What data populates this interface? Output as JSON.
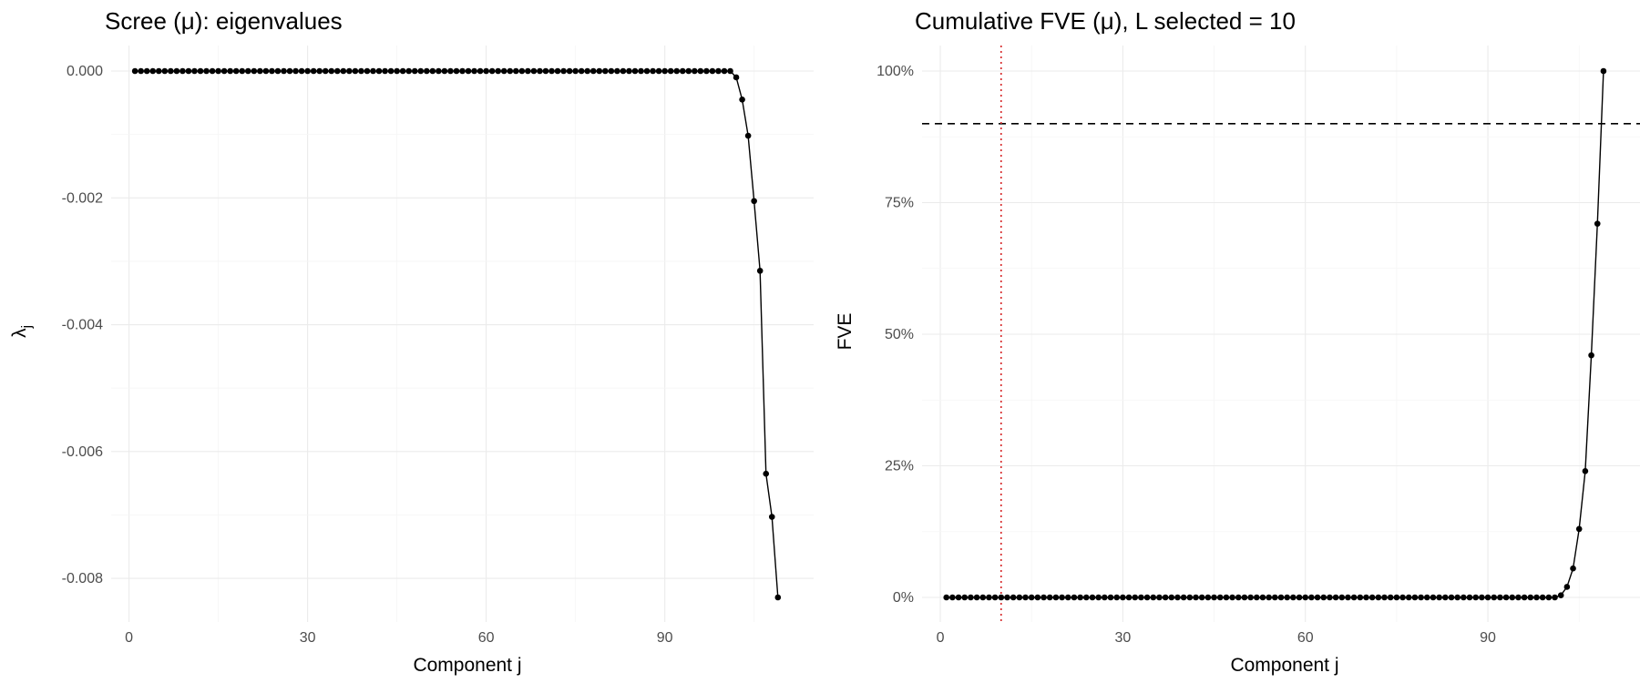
{
  "chart_data": [
    {
      "type": "line",
      "title": "Scree (μ): eigenvalues",
      "xlabel": "Component j",
      "ylabel": "λj",
      "ylabel_main": "λ",
      "ylabel_sub": "j",
      "xlim": [
        1,
        109
      ],
      "ylim": [
        -0.0083,
        0.0
      ],
      "xticks": [
        0,
        30,
        60,
        90
      ],
      "xtick_labels": [
        "0",
        "30",
        "60",
        "90"
      ],
      "yticks": [
        0.0,
        -0.002,
        -0.004,
        -0.006,
        -0.008
      ],
      "ytick_labels": [
        "0.000",
        "-0.002",
        "-0.004",
        "-0.006",
        "-0.008"
      ],
      "grid": true,
      "point_color": "#000000",
      "series": [
        {
          "x": [
            1,
            2,
            3,
            4,
            5,
            6,
            7,
            8,
            9,
            10,
            11,
            12,
            13,
            14,
            15,
            16,
            17,
            18,
            19,
            20,
            21,
            22,
            23,
            24,
            25,
            26,
            27,
            28,
            29,
            30,
            31,
            32,
            33,
            34,
            35,
            36,
            37,
            38,
            39,
            40,
            41,
            42,
            43,
            44,
            45,
            46,
            47,
            48,
            49,
            50,
            51,
            52,
            53,
            54,
            55,
            56,
            57,
            58,
            59,
            60,
            61,
            62,
            63,
            64,
            65,
            66,
            67,
            68,
            69,
            70,
            71,
            72,
            73,
            74,
            75,
            76,
            77,
            78,
            79,
            80,
            81,
            82,
            83,
            84,
            85,
            86,
            87,
            88,
            89,
            90,
            91,
            92,
            93,
            94,
            95,
            96,
            97,
            98,
            99,
            100,
            101,
            102,
            103,
            104,
            105,
            106,
            107,
            108,
            109
          ],
          "y": [
            0,
            0,
            0,
            0,
            0,
            0,
            0,
            0,
            0,
            0,
            0,
            0,
            0,
            0,
            0,
            0,
            0,
            0,
            0,
            0,
            0,
            0,
            0,
            0,
            0,
            0,
            0,
            0,
            0,
            0,
            0,
            0,
            0,
            0,
            0,
            0,
            0,
            0,
            0,
            0,
            0,
            0,
            0,
            0,
            0,
            0,
            0,
            0,
            0,
            0,
            0,
            0,
            0,
            0,
            0,
            0,
            0,
            0,
            0,
            0,
            0,
            0,
            0,
            0,
            0,
            0,
            0,
            0,
            0,
            0,
            0,
            0,
            0,
            0,
            0,
            0,
            0,
            0,
            0,
            0,
            0,
            0,
            0,
            0,
            0,
            0,
            0,
            0,
            0,
            0,
            0,
            0,
            0,
            0,
            0,
            0,
            0,
            0,
            0,
            0,
            0,
            -0.0001,
            -0.00045,
            -0.00102,
            -0.00205,
            -0.00315,
            -0.00635,
            -0.00703,
            -0.0083
          ]
        }
      ]
    },
    {
      "type": "line",
      "title": "Cumulative FVE (μ), L selected = 10",
      "xlabel": "Component j",
      "ylabel": "FVE",
      "xlim": [
        1,
        109
      ],
      "ylim": [
        0,
        1
      ],
      "xticks": [
        0,
        30,
        60,
        90
      ],
      "xtick_labels": [
        "0",
        "30",
        "60",
        "90"
      ],
      "yticks": [
        0,
        0.25,
        0.5,
        0.75,
        1.0
      ],
      "ytick_labels": [
        "0%",
        "25%",
        "50%",
        "75%",
        "100%"
      ],
      "grid": true,
      "threshold_hline": 0.9,
      "threshold_color": "#000000",
      "selected_vline": 10,
      "selected_color": "#d62728",
      "series": [
        {
          "x": [
            1,
            2,
            3,
            4,
            5,
            6,
            7,
            8,
            9,
            10,
            11,
            12,
            13,
            14,
            15,
            16,
            17,
            18,
            19,
            20,
            21,
            22,
            23,
            24,
            25,
            26,
            27,
            28,
            29,
            30,
            31,
            32,
            33,
            34,
            35,
            36,
            37,
            38,
            39,
            40,
            41,
            42,
            43,
            44,
            45,
            46,
            47,
            48,
            49,
            50,
            51,
            52,
            53,
            54,
            55,
            56,
            57,
            58,
            59,
            60,
            61,
            62,
            63,
            64,
            65,
            66,
            67,
            68,
            69,
            70,
            71,
            72,
            73,
            74,
            75,
            76,
            77,
            78,
            79,
            80,
            81,
            82,
            83,
            84,
            85,
            86,
            87,
            88,
            89,
            90,
            91,
            92,
            93,
            94,
            95,
            96,
            97,
            98,
            99,
            100,
            101,
            102,
            103,
            104,
            105,
            106,
            107,
            108,
            109
          ],
          "y": [
            0,
            0,
            0,
            0,
            0,
            0,
            0,
            0,
            0,
            0,
            0,
            0,
            0,
            0,
            0,
            0,
            0,
            0,
            0,
            0,
            0,
            0,
            0,
            0,
            0,
            0,
            0,
            0,
            0,
            0,
            0,
            0,
            0,
            0,
            0,
            0,
            0,
            0,
            0,
            0,
            0,
            0,
            0,
            0,
            0,
            0,
            0,
            0,
            0,
            0,
            0,
            0,
            0,
            0,
            0,
            0,
            0,
            0,
            0,
            0,
            0,
            0,
            0,
            0,
            0,
            0,
            0,
            0,
            0,
            0,
            0,
            0,
            0,
            0,
            0,
            0,
            0,
            0,
            0,
            0,
            0,
            0,
            0,
            0,
            0,
            0,
            0,
            0,
            0,
            0,
            0,
            0,
            0,
            0,
            0,
            0,
            0,
            0,
            0,
            0,
            0,
            0.004,
            0.02,
            0.055,
            0.13,
            0.24,
            0.46,
            0.71,
            1.0
          ]
        }
      ]
    }
  ]
}
